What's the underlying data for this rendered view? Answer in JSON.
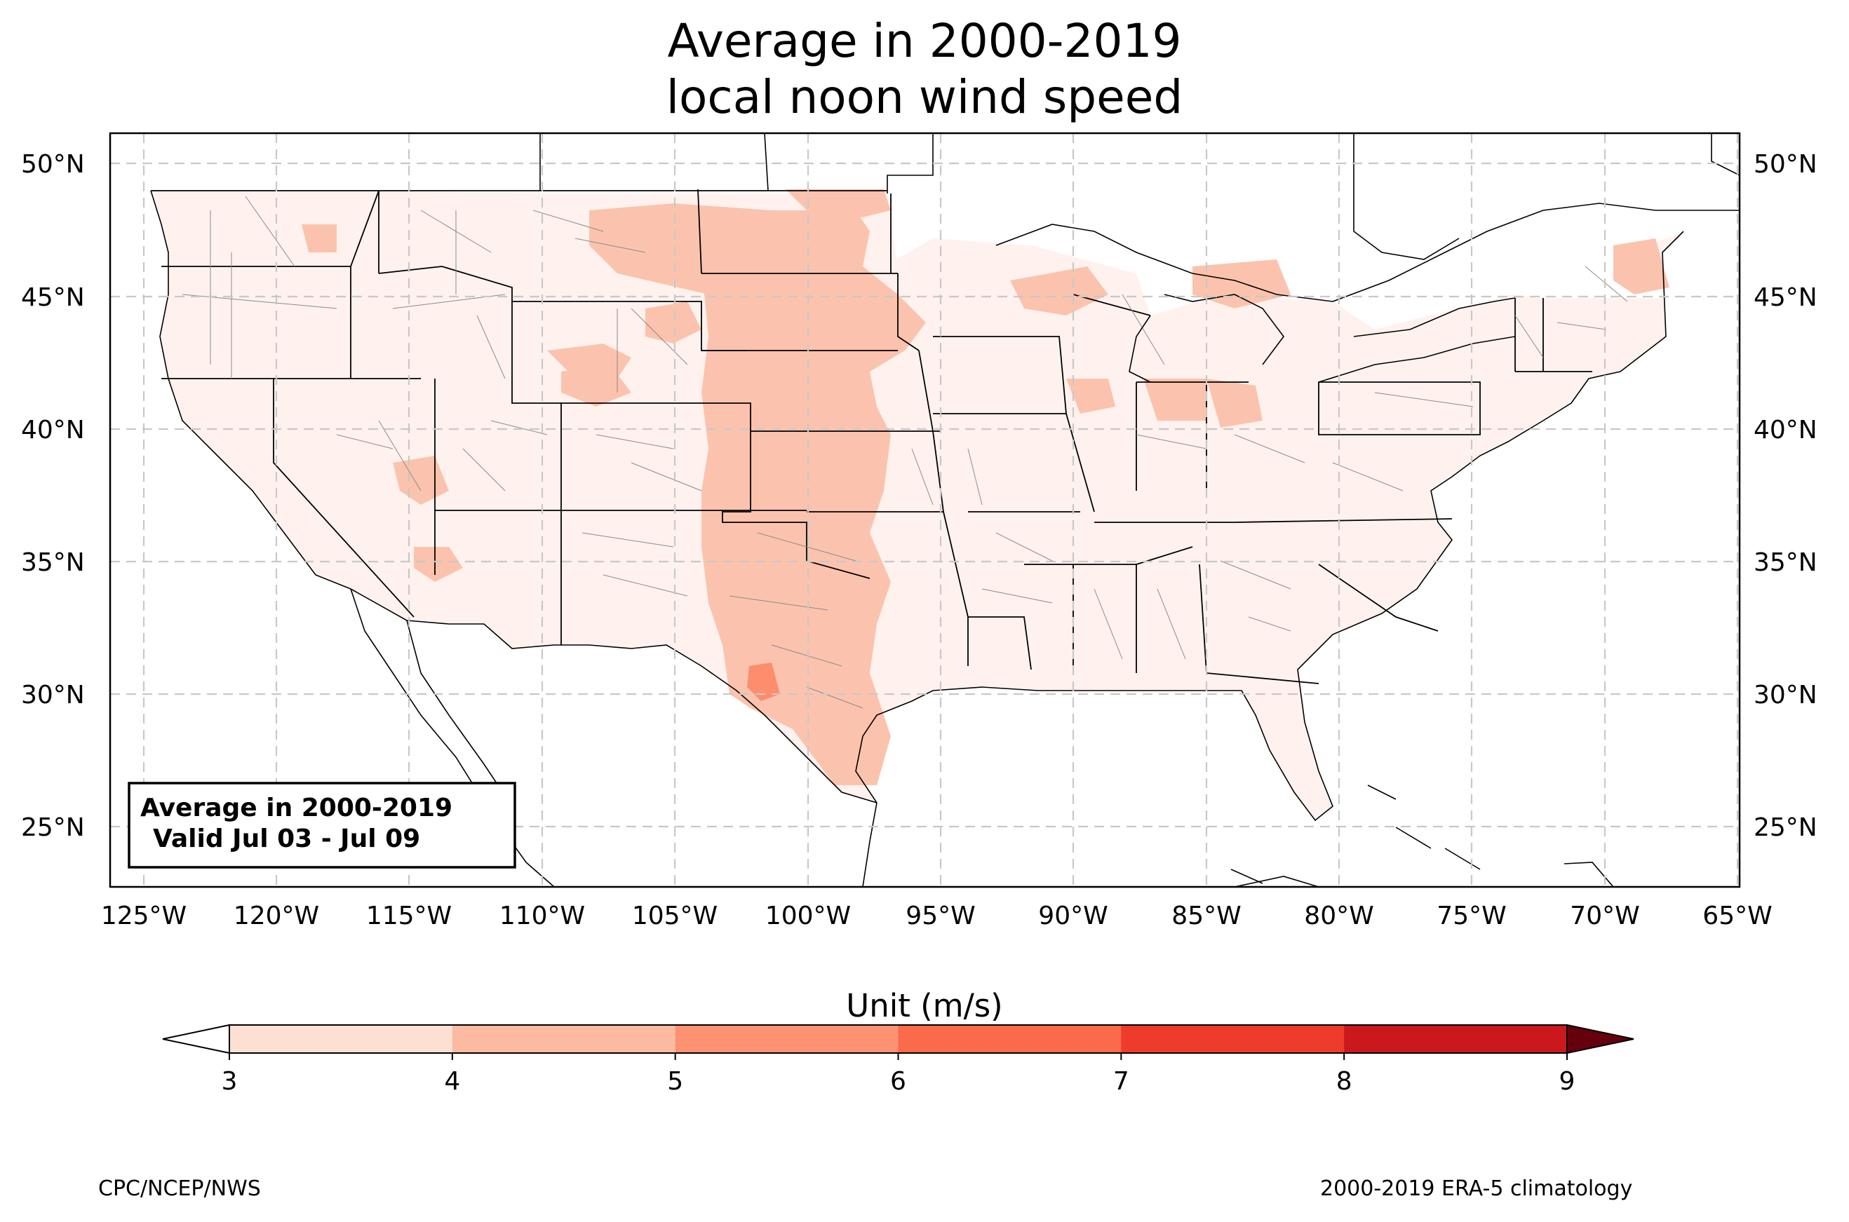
{
  "title": {
    "line1": "Average in 2000-2019",
    "line2": "local noon wind speed"
  },
  "annotation": {
    "line1": "Average in 2000-2019",
    "line2": "Valid Jul 03 - Jul 09"
  },
  "lat_ticks": [
    "50°N",
    "45°N",
    "40°N",
    "35°N",
    "30°N",
    "25°N"
  ],
  "lon_ticks": [
    "125°W",
    "120°W",
    "115°W",
    "110°W",
    "105°W",
    "100°W",
    "95°W",
    "90°W",
    "85°W",
    "80°W",
    "75°W",
    "70°W",
    "65°W"
  ],
  "colorbar": {
    "label": "Unit (m/s)",
    "ticks": [
      "3",
      "4",
      "5",
      "6",
      "7",
      "8",
      "9"
    ],
    "colors": [
      "#fee0d2",
      "#fcbba1",
      "#fc9272",
      "#fb6a4a",
      "#ef3b2c",
      "#cb181d",
      "#99000d"
    ],
    "under_color": "#ffffff",
    "over_color": "#67000d"
  },
  "footer": {
    "left": "CPC/NCEP/NWS",
    "right": "2000-2019 ERA-5 climatology"
  }
}
